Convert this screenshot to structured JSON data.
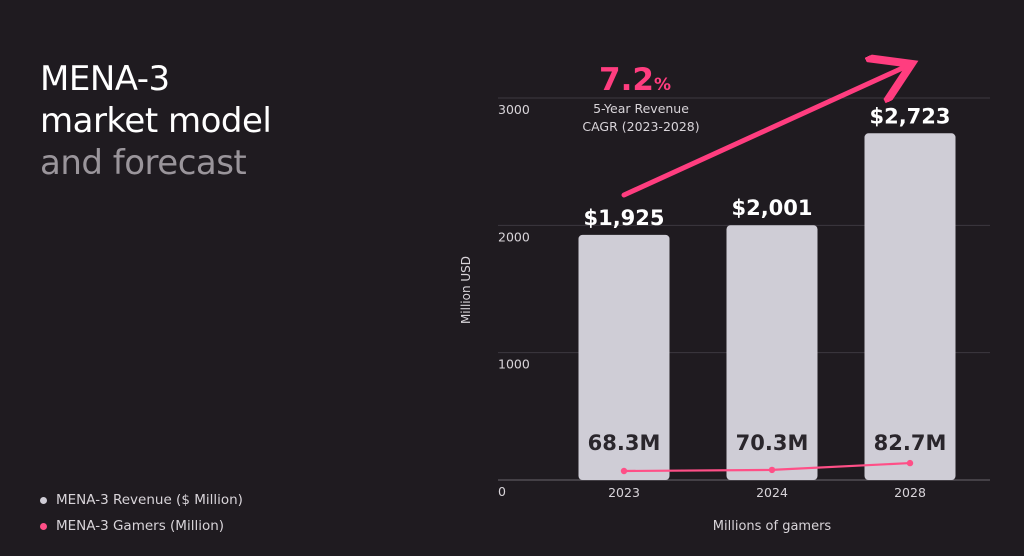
{
  "title": {
    "line1": "MENA-3",
    "line2": "market model",
    "line3": "and forecast"
  },
  "legend": [
    {
      "label": "MENA-3 Revenue ($ Million)",
      "color": "#cfcdd6"
    },
    {
      "label": "MENA-3 Gamers (Million)",
      "color": "#ff4f87"
    }
  ],
  "cagr": {
    "value": "7.2",
    "unit": "%",
    "caption_line1": "5-Year Revenue",
    "caption_line2": "CAGR (2023-2028)",
    "color": "#ff3d7f"
  },
  "chart_data": {
    "type": "bar",
    "categories": [
      "2023",
      "2024",
      "2028"
    ],
    "series": [
      {
        "name": "MENA-3 Revenue ($ Million)",
        "type": "bar",
        "values": [
          1925,
          2001,
          2723
        ],
        "labels": [
          "$1,925",
          "$2,001",
          "$2,723"
        ],
        "color": "#cfcdd6"
      },
      {
        "name": "MENA-3 Gamers (Million)",
        "type": "line",
        "values": [
          68.3,
          70.3,
          82.7
        ],
        "labels": [
          "68.3M",
          "70.3M",
          "82.7M"
        ],
        "color": "#ff4f87"
      }
    ],
    "ylabel": "Million USD",
    "xlabel": "Millions of gamers",
    "ylim": [
      0,
      3000
    ],
    "yticks": [
      "0",
      "1000",
      "2000",
      "3000"
    ],
    "grid": true
  }
}
